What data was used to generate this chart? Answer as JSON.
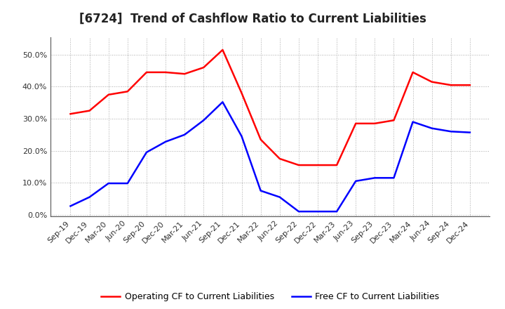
{
  "title": "[6724]  Trend of Cashflow Ratio to Current Liabilities",
  "x_labels": [
    "Sep-19",
    "Dec-19",
    "Mar-20",
    "Jun-20",
    "Sep-20",
    "Dec-20",
    "Mar-21",
    "Jun-21",
    "Sep-21",
    "Dec-21",
    "Mar-22",
    "Jun-22",
    "Sep-22",
    "Dec-22",
    "Mar-23",
    "Jun-23",
    "Sep-23",
    "Dec-23",
    "Mar-24",
    "Jun-24",
    "Sep-24",
    "Dec-24"
  ],
  "operating_cf": [
    0.315,
    0.325,
    0.375,
    0.385,
    0.445,
    0.445,
    0.44,
    0.46,
    0.515,
    0.38,
    0.235,
    0.175,
    0.155,
    0.155,
    0.155,
    0.285,
    0.285,
    0.295,
    0.445,
    0.415,
    0.405,
    0.405
  ],
  "free_cf": [
    0.027,
    0.055,
    0.098,
    0.098,
    0.195,
    0.228,
    0.25,
    0.295,
    0.352,
    0.245,
    0.075,
    0.055,
    0.01,
    0.01,
    0.01,
    0.105,
    0.115,
    0.115,
    0.29,
    0.27,
    0.26,
    0.257
  ],
  "operating_color": "#FF0000",
  "free_color": "#0000FF",
  "ylim": [
    -0.005,
    0.555
  ],
  "yticks": [
    0.0,
    0.1,
    0.2,
    0.3,
    0.4,
    0.5
  ],
  "ytick_labels": [
    "0.0%",
    "10.0%",
    "20.0%",
    "30.0%",
    "40.0%",
    "50.0%"
  ],
  "bg_color": "#FFFFFF",
  "plot_bg_color": "#FFFFFF",
  "grid_color": "#AAAAAA",
  "legend_operating": "Operating CF to Current Liabilities",
  "legend_free": "Free CF to Current Liabilities",
  "title_fontsize": 12,
  "tick_fontsize": 8,
  "legend_fontsize": 9
}
